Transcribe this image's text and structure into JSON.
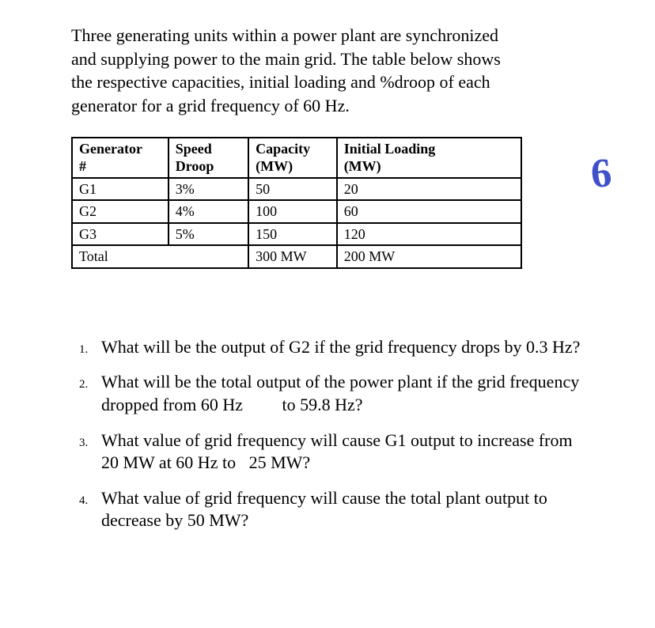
{
  "intro": "Three generating units within a power plant are synchronized and supplying power to the main grid. The table below shows the respective capacities, initial loading and %droop of each generator for a grid frequency of 60 Hz.",
  "table": {
    "headers": {
      "generator_line1": "Generator",
      "generator_line2": "#",
      "droop_line1": "Speed",
      "droop_line2": "Droop",
      "capacity_line1": "Capacity",
      "capacity_line2": "(MW)",
      "loading_line1": "Initial Loading",
      "loading_line2": "(MW)"
    },
    "rows": [
      {
        "gen": "G1",
        "droop": "3%",
        "capacity": "50",
        "loading": "20"
      },
      {
        "gen": "G2",
        "droop": "4%",
        "capacity": "100",
        "loading": "60"
      },
      {
        "gen": "G3",
        "droop": "5%",
        "capacity": "150",
        "loading": "120"
      }
    ],
    "total": {
      "label": "Total",
      "capacity": "300 MW",
      "loading": "200 MW"
    },
    "border_color": "#000000",
    "background_color": "#ffffff"
  },
  "questions": [
    {
      "num": "1.",
      "text": "What will be the output of G2 if the grid frequency drops by 0.3 Hz?"
    },
    {
      "num": "2.",
      "text": "What will be the total output of the power plant if the grid frequency dropped from 60 Hz   to 59.8 Hz?"
    },
    {
      "num": "3.",
      "text": "What value of grid frequency will cause G1 output to increase from 20 MW at 60 Hz to  25 MW?"
    },
    {
      "num": "4.",
      "text": "What value of grid frequency will cause the total plant output to decrease by 50 MW?"
    }
  ],
  "annotation": {
    "text": "6",
    "color": "#3f51c9",
    "fontsize_pt": 40
  }
}
